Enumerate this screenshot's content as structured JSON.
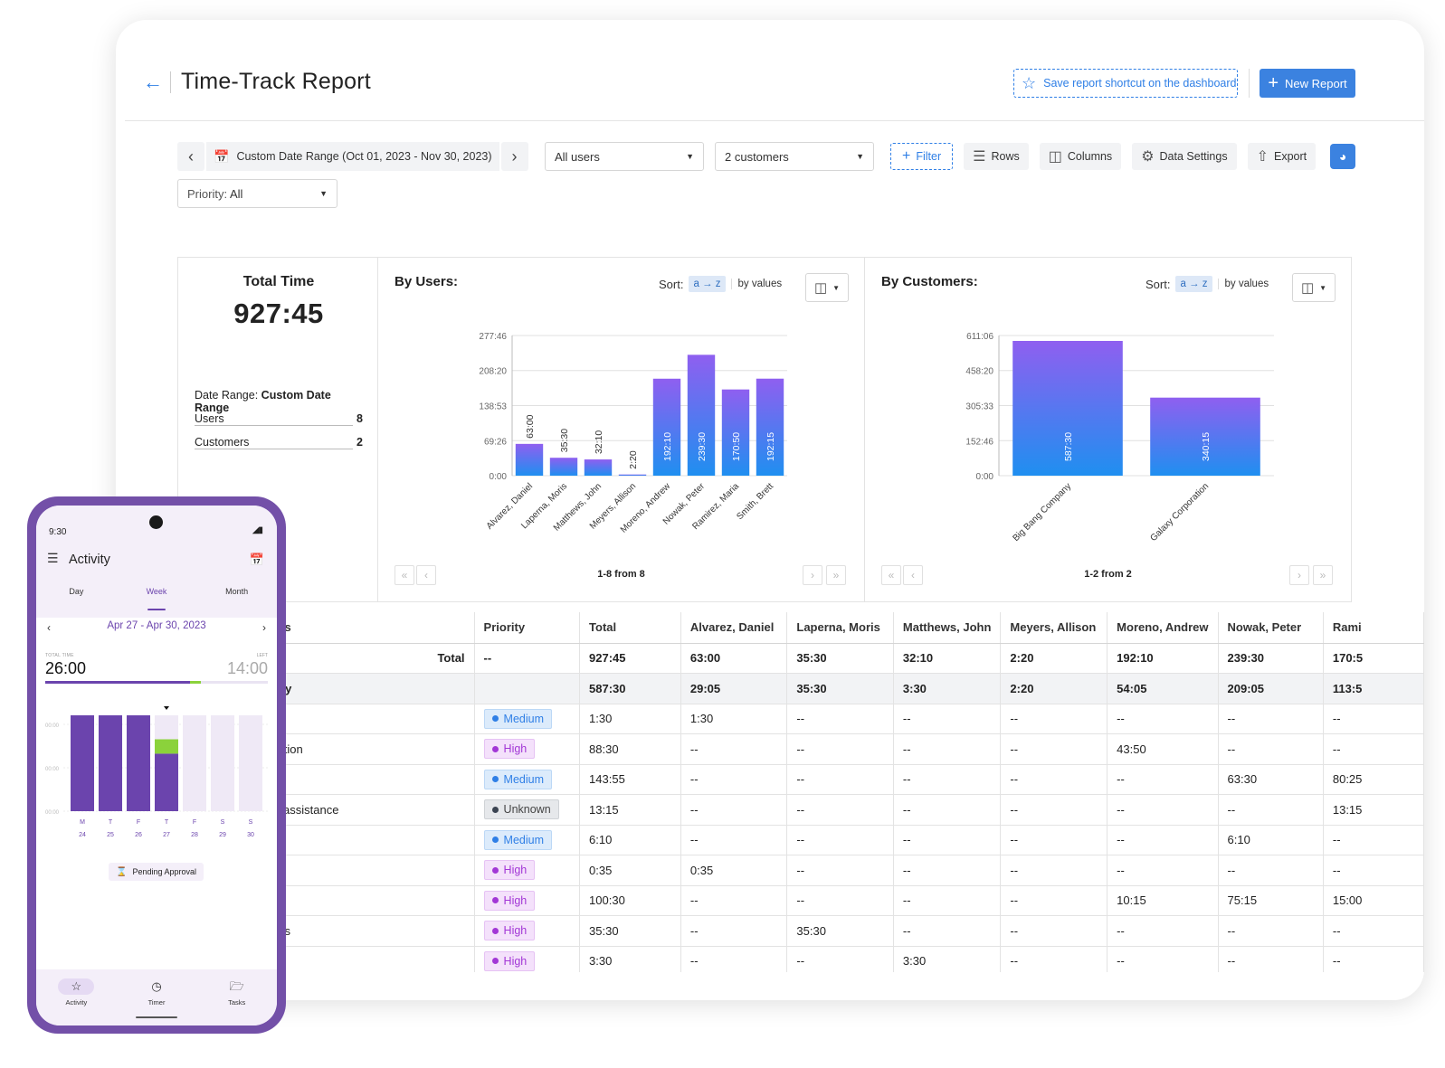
{
  "header": {
    "back_icon": "arrow-left-icon",
    "title": "Time-Track Report",
    "save_shortcut_label": "Save report shortcut on the dashboard",
    "new_report_label": "New Report"
  },
  "toolbar": {
    "date_range": "Custom Date Range (Oct 01, 2023 - Nov 30, 2023)",
    "users_select": "All users",
    "customers_select": "2 customers",
    "filter_label": "Filter",
    "rows_label": "Rows",
    "columns_label": "Columns",
    "data_settings_label": "Data Settings",
    "export_label": "Export",
    "priority_label": "Priority:",
    "priority_value": "All"
  },
  "summary": {
    "title": "Total Time",
    "value": "927:45",
    "date_range_label": "Date Range:",
    "date_range_value": "Custom Date Range",
    "users_label": "Users",
    "users_value": "8",
    "customers_label": "Customers",
    "customers_value": "2"
  },
  "users_panel": {
    "title": "By Users:",
    "sort_label": "Sort:",
    "sort_az": "a → z",
    "sort_values": "by values",
    "pager_text": "1-8 from 8"
  },
  "customers_panel": {
    "title": "By Customers:",
    "sort_label": "Sort:",
    "sort_az": "a → z",
    "sort_values": "by values",
    "pager_text": "1-2 from 2"
  },
  "chart_data": [
    {
      "type": "bar",
      "title": "By Users:",
      "categories": [
        "Alvarez, Daniel",
        "Laperna, Moris",
        "Matthews, John",
        "Meyers, Allison",
        "Moreno, Andrew",
        "Nowak, Peter",
        "Ramirez, Maria",
        "Smith, Brett"
      ],
      "values": [
        63.0,
        35.5,
        32.1667,
        2.3333,
        192.1667,
        239.5,
        170.8333,
        192.25
      ],
      "value_labels": [
        "63:00",
        "35:30",
        "32:10",
        "2:20",
        "192:10",
        "239:30",
        "170:50",
        "192:15"
      ],
      "y_ticks": [
        "0:00",
        "69:26",
        "138:53",
        "208:20",
        "277:46"
      ],
      "y_tick_values": [
        0,
        69.4333,
        138.8833,
        208.3333,
        277.7667
      ],
      "ylim": [
        0,
        277.7667
      ],
      "grid": true,
      "colors": {
        "top": "#8f5ff0",
        "bottom": "#1f8ff0"
      }
    },
    {
      "type": "bar",
      "title": "By Customers:",
      "categories": [
        "Big Bang Company",
        "Galaxy Corporation"
      ],
      "values": [
        587.5,
        340.25
      ],
      "value_labels": [
        "587:30",
        "340:15"
      ],
      "y_ticks": [
        "0:00",
        "152:46",
        "305:33",
        "458:20",
        "611:06"
      ],
      "y_tick_values": [
        0,
        152.7667,
        305.55,
        458.3333,
        611.1
      ],
      "ylim": [
        0,
        611.1
      ],
      "grid": true,
      "colors": {
        "top": "#8f5ff0",
        "bottom": "#1f8ff0"
      }
    }
  ],
  "table": {
    "columns": [
      "sks",
      "Priority",
      "Total",
      "Alvarez, Daniel",
      "Laperna, Moris",
      "Matthews, John",
      "Meyers, Allison",
      "Moreno, Andrew",
      "Nowak, Peter",
      "Rami"
    ],
    "rows": [
      {
        "kind": "total",
        "task": "Total",
        "priority": "--",
        "cells": [
          "927:45",
          "63:00",
          "35:30",
          "32:10",
          "2:20",
          "192:10",
          "239:30",
          "170:5"
        ]
      },
      {
        "kind": "group",
        "task": "any",
        "priority": "",
        "cells": [
          "587:30",
          "29:05",
          "35:30",
          "3:30",
          "2:20",
          "54:05",
          "209:05",
          "113:5"
        ]
      },
      {
        "kind": "row",
        "task": "",
        "priority": "Medium",
        "cells": [
          "1:30",
          "1:30",
          "--",
          "--",
          "--",
          "--",
          "--",
          "--"
        ]
      },
      {
        "kind": "row",
        "task": "ection",
        "priority": "High",
        "cells": [
          "88:30",
          "--",
          "--",
          "--",
          "--",
          "43:50",
          "--",
          "--"
        ]
      },
      {
        "kind": "row",
        "task": "",
        "priority": "Medium",
        "cells": [
          "143:55",
          "--",
          "--",
          "--",
          "--",
          "--",
          "63:30",
          "80:25"
        ]
      },
      {
        "kind": "row",
        "task": "w assistance",
        "priority": "Unknown",
        "cells": [
          "13:15",
          "--",
          "--",
          "--",
          "--",
          "--",
          "--",
          "13:15"
        ]
      },
      {
        "kind": "row",
        "task": "",
        "priority": "Medium",
        "cells": [
          "6:10",
          "--",
          "--",
          "--",
          "--",
          "--",
          "6:10",
          "--"
        ]
      },
      {
        "kind": "row",
        "task": "",
        "priority": "High",
        "cells": [
          "0:35",
          "0:35",
          "--",
          "--",
          "--",
          "--",
          "--",
          "--"
        ]
      },
      {
        "kind": "row",
        "task": "",
        "priority": "High",
        "cells": [
          "100:30",
          "--",
          "--",
          "--",
          "--",
          "10:15",
          "75:15",
          "15:00"
        ]
      },
      {
        "kind": "row",
        "task": "ons",
        "priority": "High",
        "cells": [
          "35:30",
          "--",
          "35:30",
          "--",
          "--",
          "--",
          "--",
          "--"
        ]
      },
      {
        "kind": "row",
        "task": "",
        "priority": "High",
        "cells": [
          "3:30",
          "--",
          "--",
          "3:30",
          "--",
          "--",
          "--",
          "--"
        ]
      }
    ]
  },
  "phone": {
    "clock": "9:30",
    "app_title": "Activity",
    "tabs": [
      "Day",
      "Week",
      "Month"
    ],
    "active_tab": "Week",
    "week_range": "Apr 27 - Apr 30, 2023",
    "total_label": "TOTAL TIME",
    "total_value": "26:00",
    "left_label": "LEFT",
    "left_value": "14:00",
    "progress": {
      "total_fraction": 0.65,
      "extra_fraction": 0.05
    },
    "y_ticks": [
      "00:00",
      "00:00",
      "00:00"
    ],
    "days": [
      {
        "letter": "M",
        "date": "24",
        "main": 1.0,
        "extra": 0
      },
      {
        "letter": "T",
        "date": "25",
        "main": 1.0,
        "extra": 0
      },
      {
        "letter": "F",
        "date": "26",
        "main": 1.0,
        "extra": 0
      },
      {
        "letter": "T",
        "date": "27",
        "main": 0.6,
        "extra": 0.15
      },
      {
        "letter": "F",
        "date": "28",
        "main": 0,
        "extra": 0
      },
      {
        "letter": "S",
        "date": "29",
        "main": 0,
        "extra": 0
      },
      {
        "letter": "S",
        "date": "30",
        "main": 0,
        "extra": 0
      }
    ],
    "pending_label": "Pending Approval",
    "nav": [
      "Activity",
      "Timer",
      "Tasks"
    ],
    "colors": {
      "primary": "#6b44ad",
      "extra": "#8bd23b",
      "empty": "#efe9f6"
    }
  }
}
